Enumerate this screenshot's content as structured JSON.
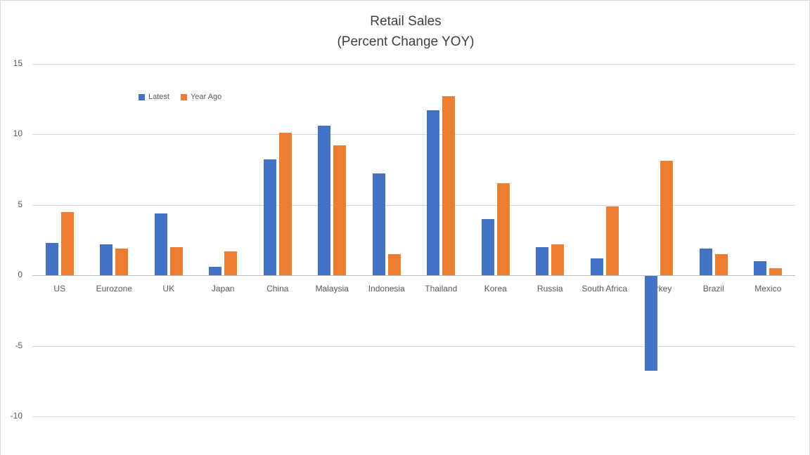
{
  "chart_data": {
    "type": "bar",
    "title": "Retail Sales",
    "subtitle": "(Percent Change YOY)",
    "categories": [
      "US",
      "Eurozone",
      "UK",
      "Japan",
      "China",
      "Malaysia",
      "Indonesia",
      "Thailand",
      "Korea",
      "Russia",
      "South Africa",
      "Turkey",
      "Brazil",
      "Mexico"
    ],
    "series": [
      {
        "name": "Latest",
        "color": "#4472C4",
        "values": [
          2.3,
          2.2,
          4.4,
          0.6,
          8.2,
          10.6,
          7.2,
          11.7,
          4.0,
          2.0,
          1.2,
          -6.7,
          1.9,
          1.0
        ]
      },
      {
        "name": "Year Ago",
        "color": "#ED7D31",
        "values": [
          4.5,
          1.9,
          2.0,
          1.7,
          10.1,
          9.2,
          1.5,
          12.7,
          6.5,
          2.2,
          4.9,
          8.1,
          1.5,
          0.5
        ]
      }
    ],
    "yticks": [
      15,
      10,
      5,
      0,
      -5,
      -10
    ],
    "ylim": [
      -10,
      15
    ],
    "grid": true,
    "legend_position": "inside-top-left",
    "colors": {
      "title_text": "#404040",
      "axis_text": "#595959",
      "gridline": "#d9d9d9",
      "axis_line": "#bfbfbf"
    }
  }
}
